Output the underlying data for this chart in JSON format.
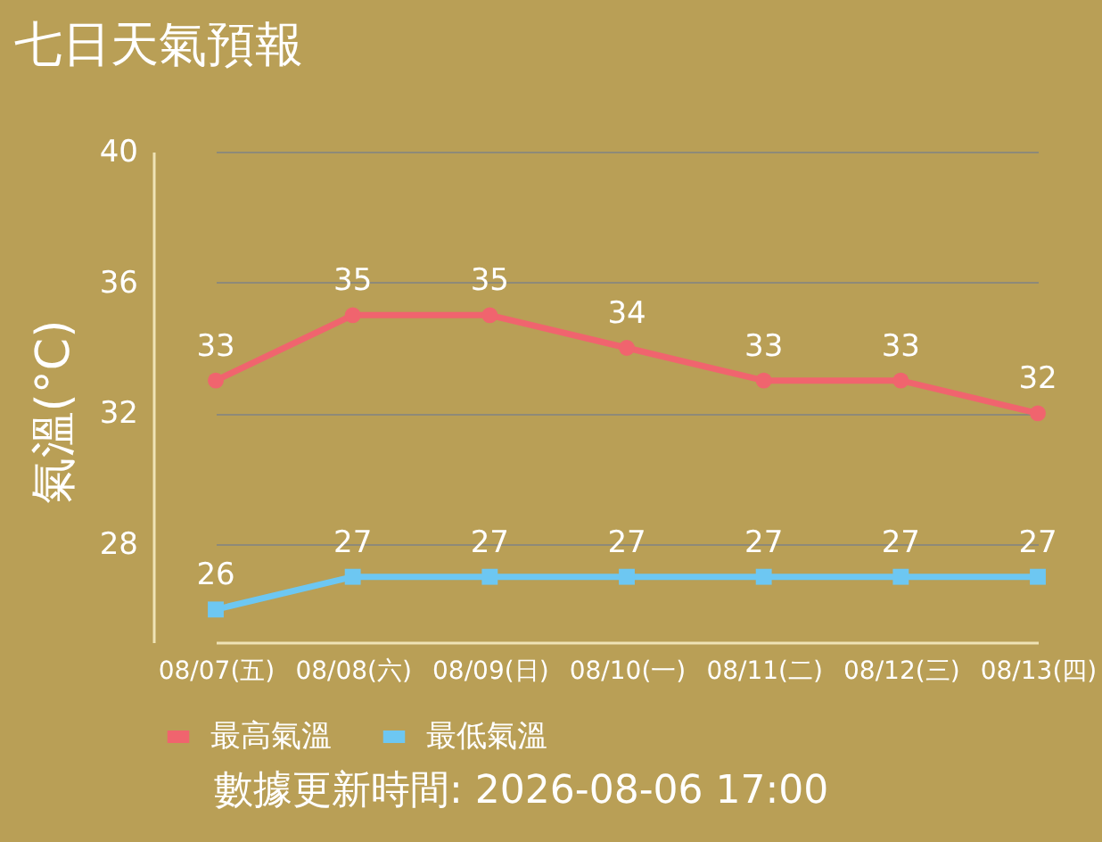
{
  "chart_data": {
    "type": "line",
    "title": "七日天氣預報",
    "ylabel": "氣溫(°C)",
    "categories": [
      "08/07(五)",
      "08/08(六)",
      "08/09(日)",
      "08/10(一)",
      "08/11(二)",
      "08/12(三)",
      "08/13(四)"
    ],
    "series": [
      {
        "name": "最高氣溫",
        "color": "#f0646e",
        "marker": "circle",
        "values": [
          33,
          35,
          35,
          34,
          33,
          33,
          32
        ]
      },
      {
        "name": "最低氣溫",
        "color": "#6dc7f2",
        "marker": "square",
        "values": [
          26,
          27,
          27,
          27,
          27,
          27,
          27
        ]
      }
    ],
    "ylim": [
      25,
      40
    ],
    "yticks": [
      28,
      32,
      36,
      40
    ],
    "grid": "y",
    "legend": "bottom",
    "data_labels": true,
    "annotations": [
      "數據更新時間: 2026-08-06 17:00"
    ]
  }
}
